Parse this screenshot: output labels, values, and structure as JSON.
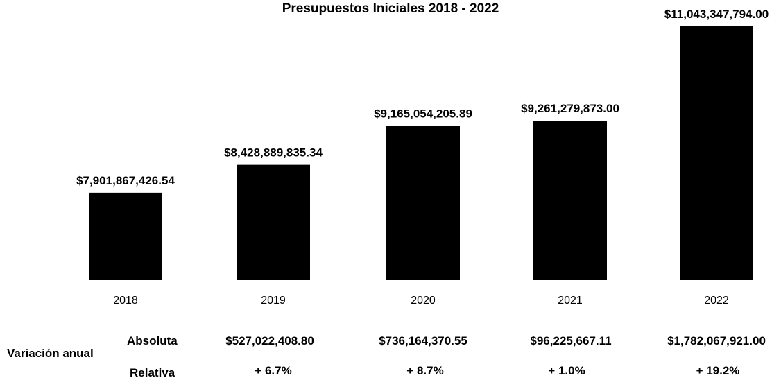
{
  "chart_data": {
    "type": "bar",
    "title": "Presupuestos Iniciales 2018 - 2022",
    "categories": [
      "2018",
      "2019",
      "2020",
      "2021",
      "2022"
    ],
    "values": [
      7901867426.54,
      8428889835.34,
      9165054205.89,
      9261279873.0,
      11043347794.0
    ],
    "data_labels": [
      "$7,901,867,426.54",
      "$8,428,889,835.34",
      "$9,165,054,205.89",
      "$9,261,279,873.00",
      "$11,043,347,794.00"
    ],
    "bar_color": "#000000",
    "ylim": [
      6250000000,
      11043347794
    ],
    "grid": false,
    "legend": "none"
  },
  "variation": {
    "label": "Variación anual",
    "absolute_label": "Absoluta",
    "relative_label": "Relativa",
    "absolute": [
      "$527,022,408.80",
      "$736,164,370.55",
      "$96,225,667.11",
      "$1,782,067,921.00"
    ],
    "relative": [
      "+ 6.7%",
      "+ 8.7%",
      "+ 1.0%",
      "+ 19.2%"
    ]
  }
}
